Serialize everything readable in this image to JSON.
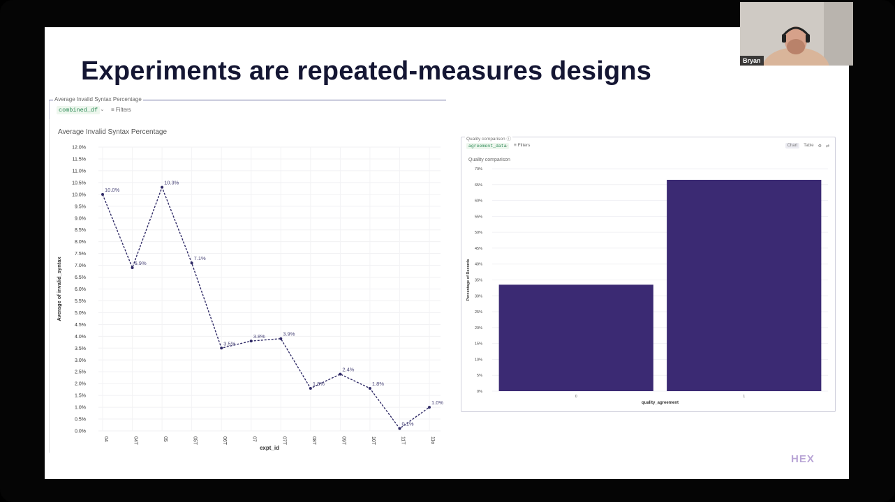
{
  "slide": {
    "title": "Experiments are repeated-measures designs",
    "logo": "HEX"
  },
  "video": {
    "participant_name": "Bryan"
  },
  "cell_line": {
    "label": "Average Invalid Syntax Percentage",
    "dataframe": "combined_df",
    "filters_label": "Filters",
    "icons": [
      "chevron-down-icon",
      "filter-icon"
    ]
  },
  "cell_bar": {
    "label": "Quality comparison",
    "dataframe": "agreement_data",
    "filters_label": "Filters",
    "tabs": [
      "Chart",
      "Table"
    ],
    "icons": [
      "info-icon",
      "chevron-down-icon",
      "filter-icon",
      "settings-icon",
      "expand-icon"
    ]
  },
  "chart_data": [
    {
      "type": "line",
      "title": "Average Invalid Syntax Percentage",
      "xlabel": "expt_id",
      "ylabel": "Average of invalid_syntax",
      "categories": [
        "04",
        "04T",
        "05",
        "05T",
        "06T",
        "07",
        "07T",
        "08T",
        "09T",
        "10T",
        "11T",
        "11o"
      ],
      "values": [
        10.0,
        6.9,
        10.3,
        7.1,
        3.5,
        3.8,
        3.9,
        1.8,
        2.4,
        1.8,
        0.1,
        1.0
      ],
      "data_labels": [
        "10.0%",
        "6.9%",
        "10.3%",
        "7.1%",
        "3.5%",
        "3.8%",
        "3.9%",
        "1.8%",
        "2.4%",
        "1.8%",
        "0.1%",
        "1.0%"
      ],
      "y_ticks": [
        "0.0%",
        "0.5%",
        "1.0%",
        "1.5%",
        "2.0%",
        "2.5%",
        "3.0%",
        "3.5%",
        "4.0%",
        "4.5%",
        "5.0%",
        "5.5%",
        "6.0%",
        "6.5%",
        "7.0%",
        "7.5%",
        "8.0%",
        "8.5%",
        "9.0%",
        "9.5%",
        "10.0%",
        "10.5%",
        "11.0%",
        "11.5%",
        "12.0%"
      ],
      "ylim": [
        0,
        12
      ],
      "line_style": "dashed",
      "grid": true,
      "color": "#2f2a66"
    },
    {
      "type": "bar",
      "title": "Quality comparison",
      "xlabel": "quality_agreement",
      "ylabel": "Percentage of Records",
      "categories": [
        "0",
        "1"
      ],
      "values": [
        33.5,
        66.5
      ],
      "y_ticks": [
        "0%",
        "5%",
        "10%",
        "15%",
        "20%",
        "25%",
        "30%",
        "35%",
        "40%",
        "45%",
        "50%",
        "55%",
        "60%",
        "65%",
        "70%"
      ],
      "ylim": [
        0,
        70
      ],
      "grid": true,
      "color": "#3b2a73"
    }
  ]
}
